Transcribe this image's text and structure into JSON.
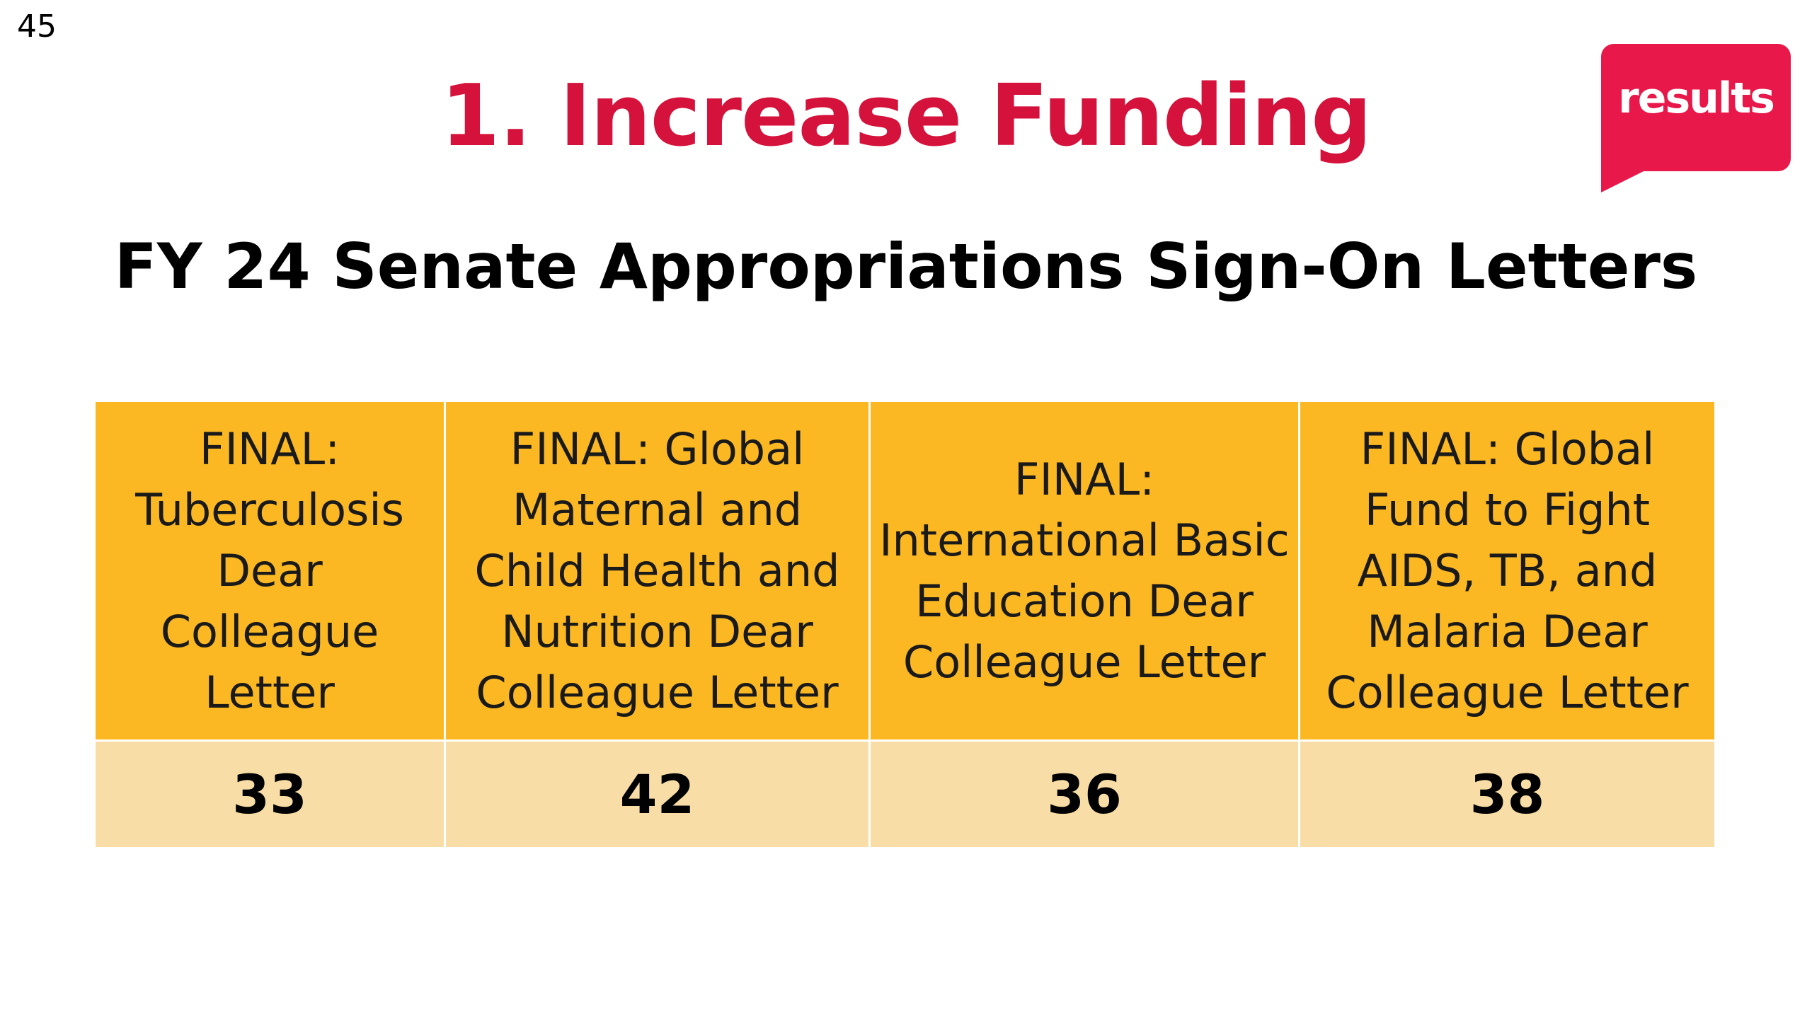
{
  "slide_number": "45",
  "title": "1. Increase Funding",
  "logo_text": "results",
  "subtitle": "FY 24 Senate Appropriations Sign-On Letters",
  "colors": {
    "title": "#d4123b",
    "logo": "#e8184a",
    "header_fill": "#fbb823",
    "value_fill": "#f8dea6"
  },
  "letters": [
    {
      "name": "FINAL: Tuberculosis Dear Colleague Letter",
      "count": "33"
    },
    {
      "name": "FINAL: Global Maternal and Child Health and Nutrition Dear Colleague Letter",
      "count": "42"
    },
    {
      "name": "FINAL: International Basic Education Dear Colleague Letter",
      "count": "36"
    },
    {
      "name": "FINAL: Global Fund to Fight AIDS, TB, and Malaria Dear Colleague Letter",
      "count": "38"
    }
  ]
}
